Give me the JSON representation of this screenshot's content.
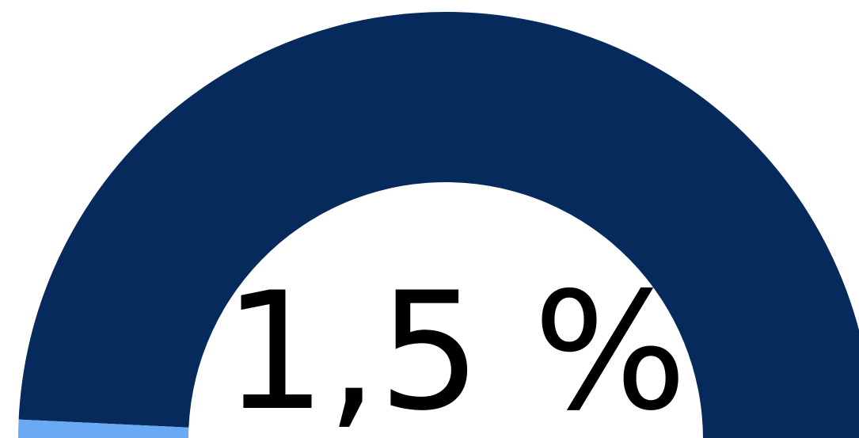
{
  "chart_data": {
    "type": "gauge",
    "values": [
      1.5
    ],
    "value_labels": [
      "1,5 %"
    ],
    "ylim": [
      0,
      100
    ],
    "color": "#6aaaf5",
    "track_color": "#062a5c"
  }
}
